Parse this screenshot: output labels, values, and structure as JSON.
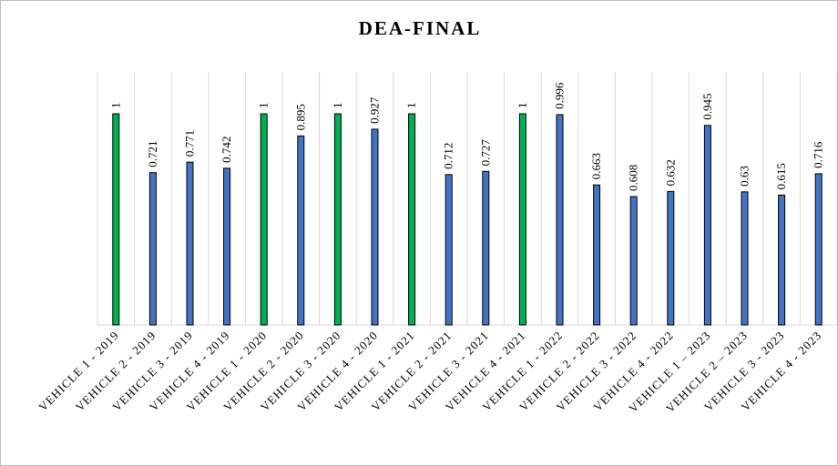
{
  "chart_data": {
    "type": "bar",
    "title": "DEA-FINAL",
    "categories": [
      "VEHICLE 1 - 2019",
      "VEHICLE 2 - 2019",
      "VEHICLE 3 - 2019",
      "VEHICLE 4 - 2019",
      "VEHICLE 1 - 2020",
      "VEHICLE 2 - 2020",
      "VEHICLE 3 - 2020",
      "VEHICLE 4 - 2020",
      "VEHICLE 1 - 2021",
      "VEHICLE 2 - 2021",
      "VEHICLE 3 - 2021",
      "VEHICLE 4 - 2021",
      "VEHICLE 1 - 2022",
      "VEHICLE 2 - 2022",
      "VEHICLE 3 - 2022",
      "VEHICLE 4 - 2022",
      "VEHICLE 1 – 2023",
      "VEHICLE 2 – 2023",
      "VEHICLE 3 - 2023",
      "VEHICLE 4 - 2023"
    ],
    "values": [
      1,
      0.721,
      0.771,
      0.742,
      1,
      0.895,
      1,
      0.927,
      1,
      0.712,
      0.727,
      1,
      0.996,
      0.663,
      0.608,
      0.632,
      0.945,
      0.63,
      0.615,
      0.716
    ],
    "value_labels": [
      "1",
      "0.721",
      "0.771",
      "0.742",
      "1",
      "0.895",
      "1",
      "0.927",
      "1",
      "0.712",
      "0.727",
      "1",
      "0.996",
      "0.663",
      "0.608",
      "0.632",
      "0.945",
      "0.63",
      "0.615",
      "0.716"
    ],
    "bar_colors": [
      "#00b050",
      "#4472c4",
      "#4472c4",
      "#4472c4",
      "#00b050",
      "#4472c4",
      "#00b050",
      "#4472c4",
      "#00b050",
      "#4472c4",
      "#4472c4",
      "#00b050",
      "#4472c4",
      "#4472c4",
      "#4472c4",
      "#4472c4",
      "#4472c4",
      "#4472c4",
      "#4472c4",
      "#4472c4"
    ],
    "ylim": [
      0,
      1.1
    ],
    "grid": "vertical category separators",
    "legend": "none"
  }
}
